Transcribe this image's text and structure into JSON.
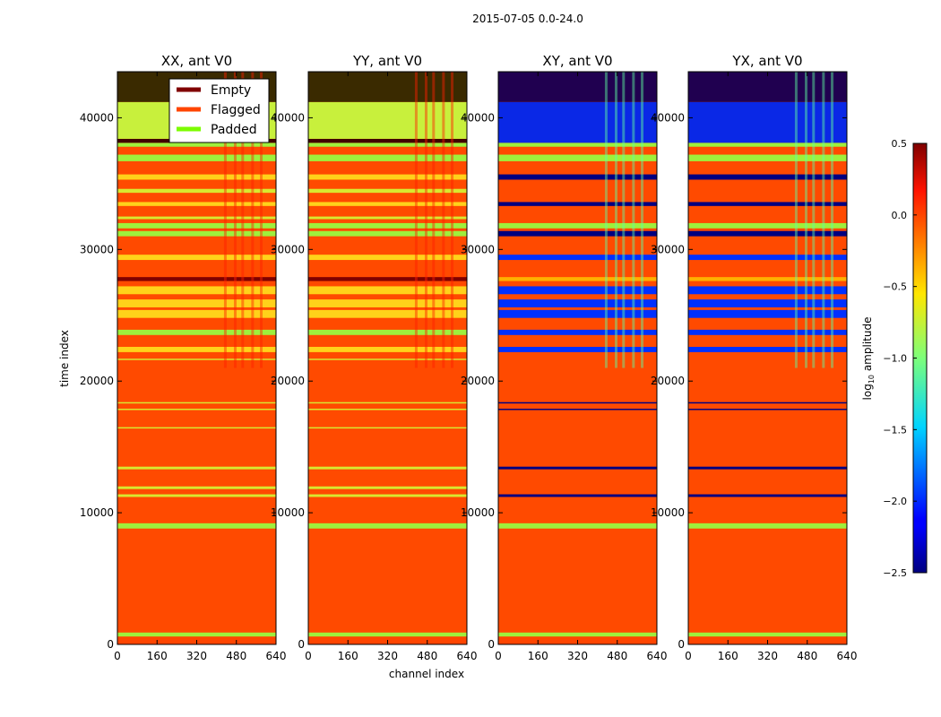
{
  "figure": {
    "suptitle": "2015-07-05 0.0-24.0"
  },
  "chart_data": {
    "type": "heatmap",
    "xlabel": "channel index",
    "ylabel": "time index",
    "xlim": [
      0,
      640
    ],
    "ylim": [
      0,
      43500
    ],
    "x_ticks": [
      0,
      160,
      320,
      480,
      640
    ],
    "y_ticks": [
      0,
      10000,
      20000,
      30000,
      40000
    ],
    "colorbar": {
      "label_main": "log",
      "label_sub": "10",
      "label_tail": " amplitude",
      "range": [
        -2.5,
        0.5
      ],
      "ticks": [
        "0.5",
        "0.0",
        "−0.5",
        "−1.0",
        "−1.5",
        "−2.0",
        "−2.5"
      ]
    },
    "legend": {
      "placement": "top-right of first panel",
      "entries": [
        {
          "label": "Empty",
          "color": "#800000"
        },
        {
          "label": "Flagged",
          "color": "#ff4500"
        },
        {
          "label": "Padded",
          "color": "#7cfc00"
        }
      ]
    },
    "panels": [
      {
        "title": "XX, ant V0",
        "base_color": "#ff4a00",
        "bands": [
          {
            "y0": 0,
            "y1": 600,
            "color": "#ff4500"
          },
          {
            "y0": 600,
            "y1": 900,
            "color": "#9ef03c"
          },
          {
            "y0": 8800,
            "y1": 9200,
            "color": "#9ef03c"
          },
          {
            "y0": 11200,
            "y1": 11400,
            "color": "#d8e830"
          },
          {
            "y0": 11800,
            "y1": 12000,
            "color": "#d8e830"
          },
          {
            "y0": 13300,
            "y1": 13500,
            "color": "#d8e830"
          },
          {
            "y0": 16400,
            "y1": 16500,
            "color": "#d8e830"
          },
          {
            "y0": 17800,
            "y1": 17900,
            "color": "#d8e830"
          },
          {
            "y0": 18300,
            "y1": 18400,
            "color": "#d8e830"
          },
          {
            "y0": 21600,
            "y1": 21700,
            "color": "#d8e830"
          },
          {
            "y0": 22200,
            "y1": 22600,
            "color": "#ffd21a"
          },
          {
            "y0": 23500,
            "y1": 23900,
            "color": "#9ef03c"
          },
          {
            "y0": 24800,
            "y1": 25400,
            "color": "#ffd21a"
          },
          {
            "y0": 25600,
            "y1": 26200,
            "color": "#ffd21a"
          },
          {
            "y0": 26600,
            "y1": 27200,
            "color": "#ffd21a"
          },
          {
            "y0": 27600,
            "y1": 27900,
            "color": "#800000"
          },
          {
            "y0": 29200,
            "y1": 29600,
            "color": "#ffd21a"
          },
          {
            "y0": 31000,
            "y1": 31400,
            "color": "#9ef03c"
          },
          {
            "y0": 31600,
            "y1": 32000,
            "color": "#9ef03c"
          },
          {
            "y0": 32300,
            "y1": 32500,
            "color": "#d8e830"
          },
          {
            "y0": 33300,
            "y1": 33600,
            "color": "#ffd21a"
          },
          {
            "y0": 34300,
            "y1": 34600,
            "color": "#d8e830"
          },
          {
            "y0": 35300,
            "y1": 35700,
            "color": "#ffd21a"
          },
          {
            "y0": 36700,
            "y1": 37200,
            "color": "#9ef03c"
          },
          {
            "y0": 37800,
            "y1": 38100,
            "color": "#9ef03c"
          },
          {
            "y0": 38100,
            "y1": 38400,
            "color": "#400000"
          },
          {
            "y0": 38400,
            "y1": 41200,
            "color": "#c8f03c"
          },
          {
            "y0": 41200,
            "y1": 43500,
            "color": "#3a2a00"
          }
        ]
      },
      {
        "title": "YY, ant V0",
        "base_color": "#ff4a00",
        "bands": [
          {
            "y0": 0,
            "y1": 600,
            "color": "#ff4500"
          },
          {
            "y0": 600,
            "y1": 900,
            "color": "#9ef03c"
          },
          {
            "y0": 8800,
            "y1": 9200,
            "color": "#9ef03c"
          },
          {
            "y0": 11200,
            "y1": 11400,
            "color": "#d8e830"
          },
          {
            "y0": 11800,
            "y1": 12000,
            "color": "#d8e830"
          },
          {
            "y0": 13300,
            "y1": 13500,
            "color": "#d8e830"
          },
          {
            "y0": 16400,
            "y1": 16500,
            "color": "#d8e830"
          },
          {
            "y0": 17800,
            "y1": 17900,
            "color": "#d8e830"
          },
          {
            "y0": 18300,
            "y1": 18400,
            "color": "#d8e830"
          },
          {
            "y0": 21600,
            "y1": 21700,
            "color": "#d8e830"
          },
          {
            "y0": 22200,
            "y1": 22600,
            "color": "#ffd21a"
          },
          {
            "y0": 23500,
            "y1": 23900,
            "color": "#9ef03c"
          },
          {
            "y0": 24800,
            "y1": 25400,
            "color": "#ffd21a"
          },
          {
            "y0": 25600,
            "y1": 26200,
            "color": "#ffd21a"
          },
          {
            "y0": 26600,
            "y1": 27200,
            "color": "#ffd21a"
          },
          {
            "y0": 27600,
            "y1": 27900,
            "color": "#800000"
          },
          {
            "y0": 29200,
            "y1": 29600,
            "color": "#ffd21a"
          },
          {
            "y0": 31000,
            "y1": 31400,
            "color": "#9ef03c"
          },
          {
            "y0": 31600,
            "y1": 32000,
            "color": "#9ef03c"
          },
          {
            "y0": 32300,
            "y1": 32500,
            "color": "#d8e830"
          },
          {
            "y0": 33300,
            "y1": 33600,
            "color": "#ffd21a"
          },
          {
            "y0": 34300,
            "y1": 34600,
            "color": "#d8e830"
          },
          {
            "y0": 35300,
            "y1": 35700,
            "color": "#ffd21a"
          },
          {
            "y0": 36700,
            "y1": 37200,
            "color": "#9ef03c"
          },
          {
            "y0": 37800,
            "y1": 38100,
            "color": "#9ef03c"
          },
          {
            "y0": 38100,
            "y1": 38400,
            "color": "#400000"
          },
          {
            "y0": 38400,
            "y1": 41200,
            "color": "#c8f03c"
          },
          {
            "y0": 41200,
            "y1": 43500,
            "color": "#3a2a00"
          }
        ]
      },
      {
        "title": "XY, ant V0",
        "base_color": "#ff4a00",
        "bands": [
          {
            "y0": 0,
            "y1": 600,
            "color": "#ff4500"
          },
          {
            "y0": 600,
            "y1": 900,
            "color": "#9ef03c"
          },
          {
            "y0": 8800,
            "y1": 9200,
            "color": "#9ef03c"
          },
          {
            "y0": 11200,
            "y1": 11400,
            "color": "#000080"
          },
          {
            "y0": 13300,
            "y1": 13500,
            "color": "#000080"
          },
          {
            "y0": 17800,
            "y1": 17900,
            "color": "#000080"
          },
          {
            "y0": 18300,
            "y1": 18400,
            "color": "#000080"
          },
          {
            "y0": 22200,
            "y1": 22600,
            "color": "#0030ff"
          },
          {
            "y0": 23500,
            "y1": 23900,
            "color": "#0030ff"
          },
          {
            "y0": 24800,
            "y1": 25400,
            "color": "#0030ff"
          },
          {
            "y0": 25600,
            "y1": 26200,
            "color": "#0030ff"
          },
          {
            "y0": 26600,
            "y1": 27200,
            "color": "#0030ff"
          },
          {
            "y0": 27600,
            "y1": 27900,
            "color": "#ffb000"
          },
          {
            "y0": 29200,
            "y1": 29600,
            "color": "#0030ff"
          },
          {
            "y0": 31000,
            "y1": 31400,
            "color": "#000080"
          },
          {
            "y0": 31600,
            "y1": 32000,
            "color": "#9ef03c"
          },
          {
            "y0": 33300,
            "y1": 33600,
            "color": "#000080"
          },
          {
            "y0": 35300,
            "y1": 35700,
            "color": "#000080"
          },
          {
            "y0": 36700,
            "y1": 37200,
            "color": "#9ef03c"
          },
          {
            "y0": 37800,
            "y1": 38100,
            "color": "#9ef03c"
          },
          {
            "y0": 38100,
            "y1": 41200,
            "color": "#0a28e6"
          },
          {
            "y0": 41200,
            "y1": 43500,
            "color": "#200050"
          }
        ]
      },
      {
        "title": "YX, ant V0",
        "base_color": "#ff4a00",
        "bands": [
          {
            "y0": 0,
            "y1": 600,
            "color": "#ff4500"
          },
          {
            "y0": 600,
            "y1": 900,
            "color": "#9ef03c"
          },
          {
            "y0": 8800,
            "y1": 9200,
            "color": "#9ef03c"
          },
          {
            "y0": 11200,
            "y1": 11400,
            "color": "#000080"
          },
          {
            "y0": 13300,
            "y1": 13500,
            "color": "#000080"
          },
          {
            "y0": 17800,
            "y1": 17900,
            "color": "#000080"
          },
          {
            "y0": 18300,
            "y1": 18400,
            "color": "#000080"
          },
          {
            "y0": 22200,
            "y1": 22600,
            "color": "#0030ff"
          },
          {
            "y0": 23500,
            "y1": 23900,
            "color": "#0030ff"
          },
          {
            "y0": 24800,
            "y1": 25400,
            "color": "#0030ff"
          },
          {
            "y0": 25600,
            "y1": 26200,
            "color": "#0030ff"
          },
          {
            "y0": 26600,
            "y1": 27200,
            "color": "#0030ff"
          },
          {
            "y0": 27600,
            "y1": 27900,
            "color": "#ffb000"
          },
          {
            "y0": 29200,
            "y1": 29600,
            "color": "#0030ff"
          },
          {
            "y0": 31000,
            "y1": 31400,
            "color": "#000080"
          },
          {
            "y0": 31600,
            "y1": 32000,
            "color": "#9ef03c"
          },
          {
            "y0": 33300,
            "y1": 33600,
            "color": "#000080"
          },
          {
            "y0": 35300,
            "y1": 35700,
            "color": "#000080"
          },
          {
            "y0": 36700,
            "y1": 37200,
            "color": "#9ef03c"
          },
          {
            "y0": 37800,
            "y1": 38100,
            "color": "#9ef03c"
          },
          {
            "y0": 38100,
            "y1": 41200,
            "color": "#0a28e6"
          },
          {
            "y0": 41200,
            "y1": 43500,
            "color": "#200050"
          }
        ]
      }
    ]
  }
}
